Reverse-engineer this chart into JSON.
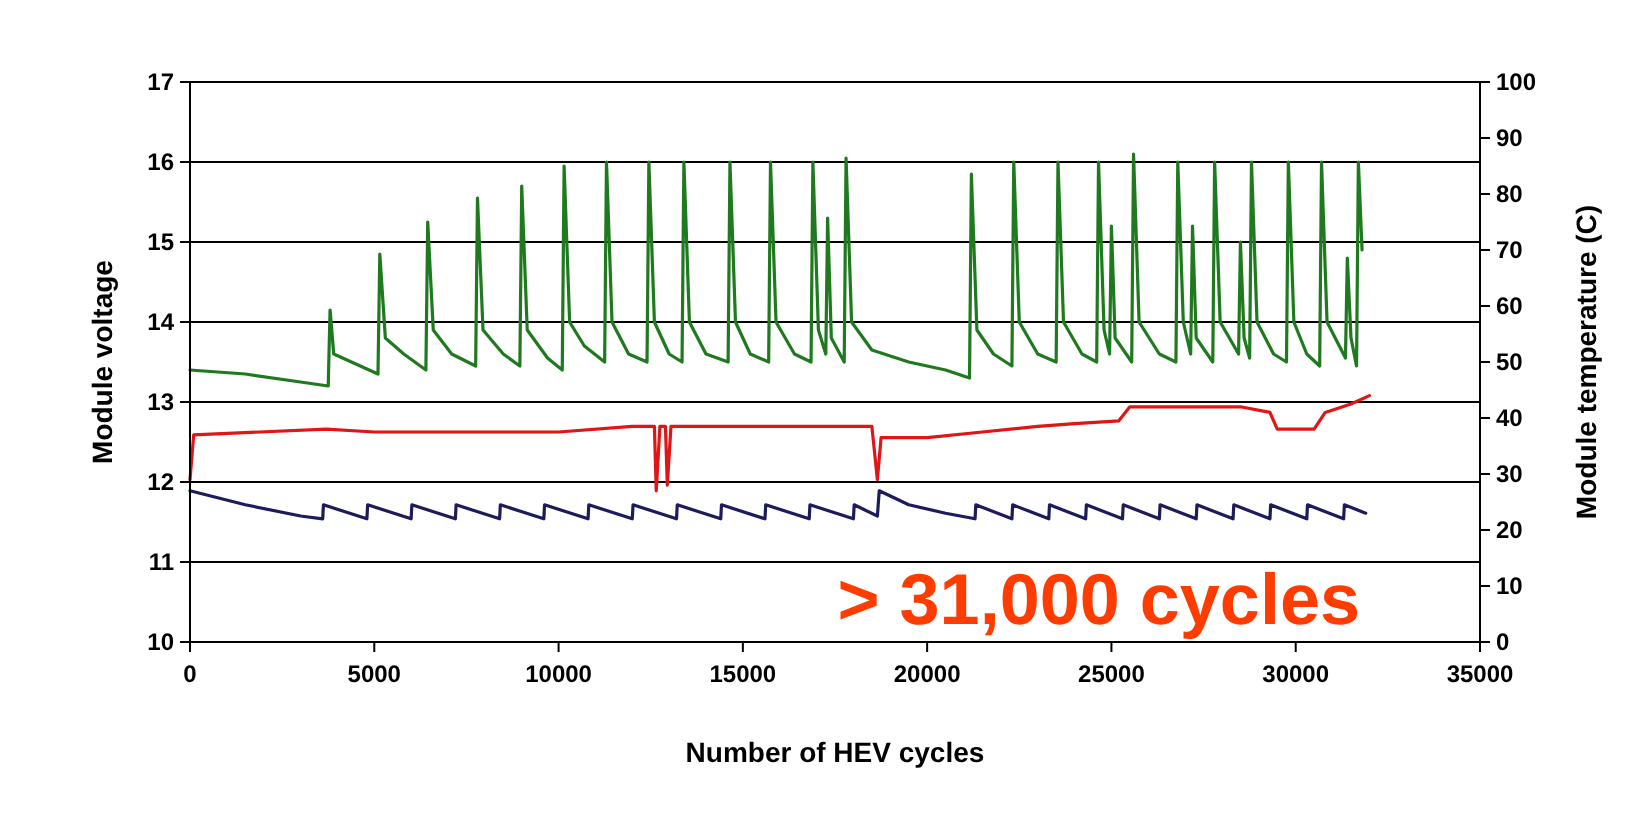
{
  "chart_data": {
    "type": "line",
    "xlabel": "Number of HEV cycles",
    "ylabel": "Module voltage",
    "y2label": "Module temperature (C)",
    "xlim": [
      0,
      35000
    ],
    "xticks": [
      0,
      5000,
      10000,
      15000,
      20000,
      25000,
      30000,
      35000
    ],
    "ylim": [
      10,
      17
    ],
    "yticks": [
      10,
      11,
      12,
      13,
      14,
      15,
      16,
      17
    ],
    "y2lim": [
      0,
      100
    ],
    "y2ticks": [
      0,
      10,
      20,
      30,
      40,
      50,
      60,
      70,
      80,
      90,
      100
    ],
    "grid": "y",
    "line_style": "solid",
    "annotations": [
      "> 31,000 cycles"
    ],
    "series": [
      {
        "color": "#1f7a1f",
        "x": [
          0,
          1500,
          3000,
          3750,
          3800,
          3900,
          5100,
          5150,
          5300,
          5800,
          6400,
          6450,
          6600,
          7100,
          7750,
          7800,
          7950,
          8500,
          8950,
          9000,
          9150,
          9700,
          10100,
          10150,
          10300,
          10700,
          11250,
          11300,
          11450,
          11900,
          12400,
          12450,
          12600,
          13000,
          13350,
          13400,
          13550,
          14000,
          14600,
          14650,
          14800,
          15200,
          15700,
          15750,
          15900,
          16400,
          16850,
          16900,
          17050,
          17250,
          17300,
          17400,
          17750,
          17800,
          17950,
          18500,
          19500,
          20500,
          21150,
          21200,
          21350,
          21800,
          22300,
          22350,
          22500,
          23000,
          23500,
          23550,
          23700,
          24200,
          24600,
          24650,
          24800,
          24950,
          25000,
          25100,
          25550,
          25600,
          25750,
          26300,
          26750,
          26800,
          26950,
          27150,
          27200,
          27300,
          27750,
          27800,
          27950,
          28450,
          28500,
          28600,
          28750,
          28800,
          28950,
          29400,
          29750,
          29800,
          29950,
          30300,
          30650,
          30700,
          30850,
          31350,
          31400,
          31500,
          31650,
          31700,
          31800
        ],
        "values": [
          13.4,
          13.35,
          13.25,
          13.2,
          14.15,
          13.6,
          13.35,
          14.85,
          13.8,
          13.6,
          13.4,
          15.25,
          13.9,
          13.6,
          13.45,
          15.55,
          13.9,
          13.6,
          13.45,
          15.7,
          13.9,
          13.55,
          13.4,
          15.95,
          14.0,
          13.7,
          13.5,
          16.0,
          14.0,
          13.6,
          13.5,
          16.0,
          14.0,
          13.6,
          13.5,
          16.0,
          14.0,
          13.6,
          13.5,
          16.0,
          14.0,
          13.6,
          13.5,
          16.0,
          14.0,
          13.6,
          13.5,
          16.0,
          13.9,
          13.6,
          15.3,
          13.8,
          13.5,
          16.05,
          14.0,
          13.65,
          13.5,
          13.4,
          13.3,
          15.85,
          13.9,
          13.6,
          13.45,
          16.0,
          14.0,
          13.6,
          13.5,
          16.0,
          14.0,
          13.6,
          13.5,
          16.0,
          13.9,
          13.6,
          15.2,
          13.8,
          13.5,
          16.1,
          14.0,
          13.6,
          13.5,
          16.0,
          14.0,
          13.6,
          15.2,
          13.8,
          13.5,
          16.0,
          14.0,
          13.6,
          15.0,
          13.8,
          13.55,
          16.0,
          14.0,
          13.6,
          13.5,
          16.0,
          14.0,
          13.6,
          13.45,
          16.0,
          14.0,
          13.55,
          14.8,
          13.8,
          13.45,
          16.0,
          14.9
        ]
      },
      {
        "color": "#e01515",
        "axis": "y2",
        "x": [
          0,
          100,
          3700,
          5000,
          10000,
          12000,
          12600,
          12650,
          12750,
          12900,
          12950,
          13050,
          16000,
          18500,
          18650,
          18750,
          20000,
          21500,
          23000,
          24000,
          25200,
          25500,
          28500,
          29300,
          29500,
          30500,
          30800,
          31500,
          32000
        ],
        "values": [
          29,
          37,
          38,
          37.5,
          37.5,
          38.5,
          38.5,
          27,
          38.5,
          38.5,
          28,
          38.5,
          38.5,
          38.5,
          29,
          36.5,
          36.5,
          37.5,
          38.5,
          39,
          39.5,
          42,
          42,
          41,
          38,
          38,
          41,
          42.5,
          44
        ]
      },
      {
        "color": "#1c1c5c",
        "axis": "y2",
        "x": [
          0,
          1500,
          3000,
          3600,
          3620,
          4800,
          4820,
          6000,
          6020,
          7200,
          7220,
          8400,
          8420,
          9600,
          9620,
          10800,
          10820,
          12000,
          12020,
          13200,
          13220,
          14400,
          14420,
          15600,
          15620,
          16800,
          16820,
          18000,
          18020,
          18650,
          18700,
          19500,
          20500,
          21300,
          21320,
          22300,
          22320,
          23300,
          23320,
          24300,
          24320,
          25300,
          25320,
          26300,
          26320,
          27300,
          27320,
          28300,
          28320,
          29300,
          29320,
          30300,
          30320,
          31300,
          31320,
          31900
        ],
        "values": [
          27,
          24.5,
          22.5,
          22,
          24.5,
          22,
          24.5,
          22,
          24.5,
          22,
          24.5,
          22,
          24.5,
          22,
          24.5,
          22,
          24.5,
          22,
          24.5,
          22,
          24.5,
          22,
          24.5,
          22,
          24.5,
          22,
          24.5,
          22,
          24.5,
          22.5,
          27,
          24.5,
          23,
          22,
          24.5,
          22,
          24.5,
          22,
          24.5,
          22,
          24.5,
          22,
          24.5,
          22,
          24.5,
          22,
          24.5,
          22,
          24.5,
          22,
          24.5,
          22,
          24.5,
          22,
          24.5,
          23
        ]
      }
    ]
  }
}
